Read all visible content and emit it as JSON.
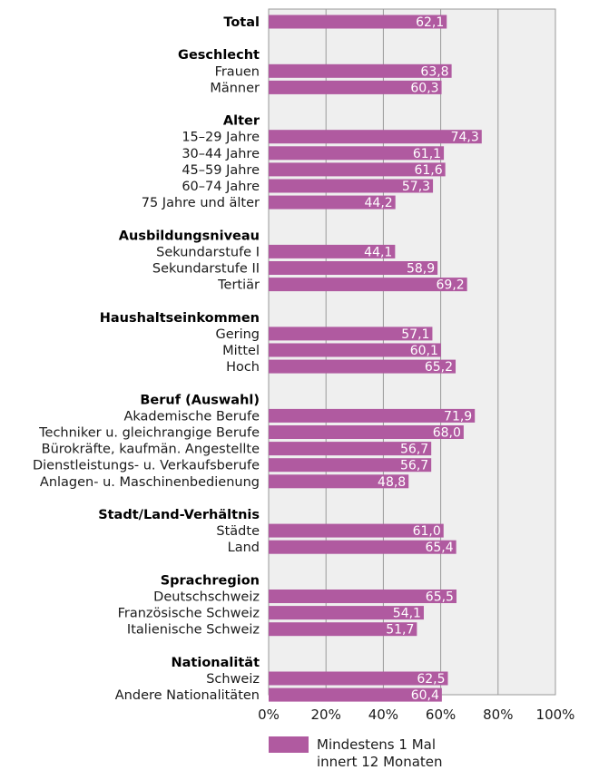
{
  "chart_data": {
    "type": "bar",
    "orientation": "horizontal",
    "xlim": [
      0,
      100
    ],
    "x_ticks": [
      "0%",
      "20%",
      "40%",
      "60%",
      "80%",
      "100%"
    ],
    "grid": true,
    "legend_position": "bottom",
    "series": [
      {
        "name": "Mindestens 1 Mal innert 12 Monaten",
        "color": "#b05aa0"
      }
    ],
    "legend_lines": [
      "Mindestens 1 Mal",
      "innert 12 Monaten"
    ],
    "rows": [
      {
        "kind": "header",
        "label": "Total",
        "value": 62.1,
        "value_label": "62,1"
      },
      {
        "kind": "group",
        "label": "Geschlecht"
      },
      {
        "kind": "bar",
        "label": "Frauen",
        "value": 63.8,
        "value_label": "63,8"
      },
      {
        "kind": "bar",
        "label": "Männer",
        "value": 60.3,
        "value_label": "60,3"
      },
      {
        "kind": "group",
        "label": "Alter"
      },
      {
        "kind": "bar",
        "label": "15–29 Jahre",
        "value": 74.3,
        "value_label": "74,3"
      },
      {
        "kind": "bar",
        "label": "30–44 Jahre",
        "value": 61.1,
        "value_label": "61,1"
      },
      {
        "kind": "bar",
        "label": "45–59 Jahre",
        "value": 61.6,
        "value_label": "61,6"
      },
      {
        "kind": "bar",
        "label": "60–74 Jahre",
        "value": 57.3,
        "value_label": "57,3"
      },
      {
        "kind": "bar",
        "label": "75 Jahre und älter",
        "value": 44.2,
        "value_label": "44,2"
      },
      {
        "kind": "group",
        "label": "Ausbildungsniveau"
      },
      {
        "kind": "bar",
        "label": "Sekundarstufe I",
        "value": 44.1,
        "value_label": "44,1"
      },
      {
        "kind": "bar",
        "label": "Sekundarstufe II",
        "value": 58.9,
        "value_label": "58,9"
      },
      {
        "kind": "bar",
        "label": "Tertiär",
        "value": 69.2,
        "value_label": "69,2"
      },
      {
        "kind": "group",
        "label": "Haushaltseinkommen"
      },
      {
        "kind": "bar",
        "label": "Gering",
        "value": 57.1,
        "value_label": "57,1"
      },
      {
        "kind": "bar",
        "label": "Mittel",
        "value": 60.1,
        "value_label": "60,1"
      },
      {
        "kind": "bar",
        "label": "Hoch",
        "value": 65.2,
        "value_label": "65,2"
      },
      {
        "kind": "group",
        "label": "Beruf (Auswahl)"
      },
      {
        "kind": "bar",
        "label": "Akademische Berufe",
        "value": 71.9,
        "value_label": "71,9"
      },
      {
        "kind": "bar",
        "label": "Techniker u. gleichrangige Berufe",
        "value": 68.0,
        "value_label": "68,0"
      },
      {
        "kind": "bar",
        "label": "Bürokräfte, kaufmän. Angestellte",
        "value": 56.7,
        "value_label": "56,7"
      },
      {
        "kind": "bar",
        "label": "Dienstleistungs- u. Verkaufsberufe",
        "value": 56.7,
        "value_label": "56,7"
      },
      {
        "kind": "bar",
        "label": "Anlagen- u. Maschinenbedienung",
        "value": 48.8,
        "value_label": "48,8"
      },
      {
        "kind": "group",
        "label": "Stadt/Land-Verhältnis"
      },
      {
        "kind": "bar",
        "label": "Städte",
        "value": 61.0,
        "value_label": "61,0"
      },
      {
        "kind": "bar",
        "label": "Land",
        "value": 65.4,
        "value_label": "65,4"
      },
      {
        "kind": "group",
        "label": "Sprachregion"
      },
      {
        "kind": "bar",
        "label": "Deutschschweiz",
        "value": 65.5,
        "value_label": "65,5"
      },
      {
        "kind": "bar",
        "label": "Französische Schweiz",
        "value": 54.1,
        "value_label": "54,1"
      },
      {
        "kind": "bar",
        "label": "Italienische Schweiz",
        "value": 51.7,
        "value_label": "51,7"
      },
      {
        "kind": "group",
        "label": "Nationalität"
      },
      {
        "kind": "bar",
        "label": "Schweiz",
        "value": 62.5,
        "value_label": "62,5"
      },
      {
        "kind": "bar",
        "label": "Andere Nationalitäten",
        "value": 60.4,
        "value_label": "60,4"
      }
    ]
  }
}
